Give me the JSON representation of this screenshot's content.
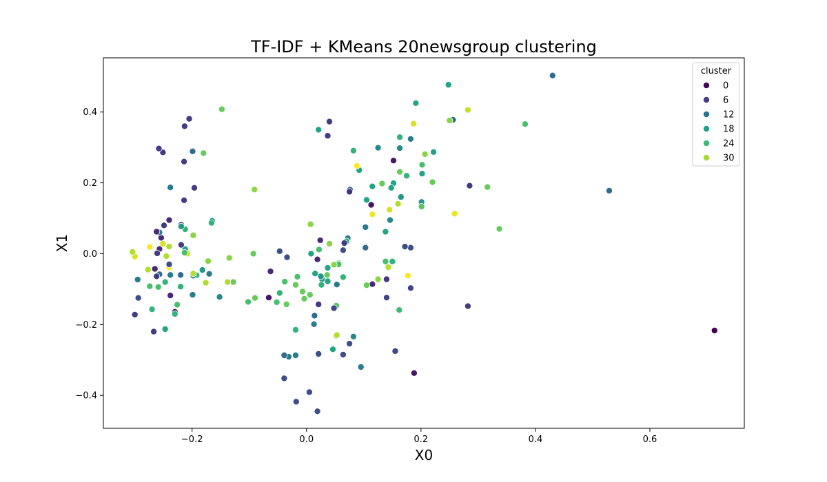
{
  "chart_data": {
    "type": "scatter",
    "title": "TF-IDF + KMeans 20newsgroup clustering",
    "xlabel": "X0",
    "ylabel": "X1",
    "xlim": [
      -0.355,
      0.765
    ],
    "ylim": [
      -0.493,
      0.553
    ],
    "xticks": [
      -0.2,
      0.0,
      0.2,
      0.4,
      0.6
    ],
    "xtick_labels": [
      "−0.2",
      "0.0",
      "0.2",
      "0.4",
      "0.6"
    ],
    "yticks": [
      -0.4,
      -0.2,
      0.0,
      0.2,
      0.4
    ],
    "ytick_labels": [
      "−0.4",
      "−0.2",
      "0.0",
      "0.2",
      "0.4"
    ],
    "grid": false,
    "legend": {
      "title": "cluster",
      "placement": "top-right",
      "entries": [
        {
          "label": "0",
          "color": "#440154"
        },
        {
          "label": "6",
          "color": "#433e85"
        },
        {
          "label": "12",
          "color": "#2c728e"
        },
        {
          "label": "18",
          "color": "#1f9e89"
        },
        {
          "label": "24",
          "color": "#3bbb75"
        },
        {
          "label": "30",
          "color": "#a5db36"
        }
      ]
    },
    "colormap": "viridis",
    "cluster_range": [
      0,
      34
    ],
    "points": [
      {
        "x": 0.713,
        "y": -0.217,
        "c": 0
      },
      {
        "x": 0.43,
        "y": 0.503,
        "c": 12
      },
      {
        "x": 0.529,
        "y": 0.178,
        "c": 12
      },
      {
        "x": 0.382,
        "y": 0.366,
        "c": 24
      },
      {
        "x": 0.337,
        "y": 0.07,
        "c": 26
      },
      {
        "x": 0.316,
        "y": 0.188,
        "c": 26
      },
      {
        "x": 0.282,
        "y": 0.406,
        "c": 31
      },
      {
        "x": 0.248,
        "y": 0.477,
        "c": 20
      },
      {
        "x": 0.285,
        "y": 0.192,
        "c": 6
      },
      {
        "x": 0.282,
        "y": -0.148,
        "c": 6
      },
      {
        "x": 0.259,
        "y": 0.113,
        "c": 33
      },
      {
        "x": 0.256,
        "y": 0.378,
        "c": 12
      },
      {
        "x": 0.25,
        "y": 0.376,
        "c": 28
      },
      {
        "x": 0.222,
        "y": 0.287,
        "c": 20
      },
      {
        "x": 0.22,
        "y": 0.202,
        "c": 26
      },
      {
        "x": 0.207,
        "y": 0.281,
        "c": 28
      },
      {
        "x": 0.202,
        "y": 0.251,
        "c": 24
      },
      {
        "x": 0.201,
        "y": 0.146,
        "c": 18
      },
      {
        "x": 0.201,
        "y": 0.133,
        "c": 25
      },
      {
        "x": 0.202,
        "y": 0.226,
        "c": 20
      },
      {
        "x": 0.191,
        "y": 0.425,
        "c": 20
      },
      {
        "x": 0.187,
        "y": 0.367,
        "c": 32
      },
      {
        "x": 0.182,
        "y": 0.324,
        "c": 14
      },
      {
        "x": 0.188,
        "y": -0.337,
        "c": 2
      },
      {
        "x": 0.182,
        "y": 0.017,
        "c": 8
      },
      {
        "x": 0.182,
        "y": -0.097,
        "c": 7
      },
      {
        "x": 0.177,
        "y": -0.062,
        "c": 34
      },
      {
        "x": 0.175,
        "y": 0.22,
        "c": 22
      },
      {
        "x": 0.172,
        "y": 0.02,
        "c": 8
      },
      {
        "x": 0.165,
        "y": 0.16,
        "c": 18
      },
      {
        "x": 0.163,
        "y": 0.329,
        "c": 22
      },
      {
        "x": 0.163,
        "y": 0.298,
        "c": 16
      },
      {
        "x": 0.163,
        "y": 0.231,
        "c": 26
      },
      {
        "x": 0.16,
        "y": 0.141,
        "c": 30
      },
      {
        "x": 0.162,
        "y": -0.159,
        "c": 23
      },
      {
        "x": 0.155,
        "y": -0.275,
        "c": 7
      },
      {
        "x": 0.152,
        "y": 0.263,
        "c": 2
      },
      {
        "x": 0.152,
        "y": 0.199,
        "c": 20
      },
      {
        "x": 0.148,
        "y": 0.186,
        "c": 20
      },
      {
        "x": 0.146,
        "y": 0.095,
        "c": 16
      },
      {
        "x": 0.15,
        "y": -0.022,
        "c": 22
      },
      {
        "x": 0.145,
        "y": 0.124,
        "c": 32
      },
      {
        "x": 0.143,
        "y": -0.038,
        "c": 30
      },
      {
        "x": 0.14,
        "y": -0.072,
        "c": 5
      },
      {
        "x": 0.14,
        "y": -0.124,
        "c": 7
      },
      {
        "x": 0.138,
        "y": 0.062,
        "c": 20
      },
      {
        "x": 0.138,
        "y": -0.022,
        "c": 24
      },
      {
        "x": 0.132,
        "y": 0.198,
        "c": 26
      },
      {
        "x": 0.125,
        "y": 0.299,
        "c": 16
      },
      {
        "x": 0.125,
        "y": -0.072,
        "c": 28
      },
      {
        "x": 0.115,
        "y": 0.19,
        "c": 20
      },
      {
        "x": 0.115,
        "y": 0.111,
        "c": 33
      },
      {
        "x": 0.115,
        "y": -0.086,
        "c": 4
      },
      {
        "x": 0.113,
        "y": 0.138,
        "c": 2
      },
      {
        "x": 0.105,
        "y": 0.152,
        "c": 20
      },
      {
        "x": 0.105,
        "y": -0.089,
        "c": 26
      },
      {
        "x": 0.103,
        "y": 0.075,
        "c": 14
      },
      {
        "x": 0.103,
        "y": 0.017,
        "c": 12
      },
      {
        "x": 0.095,
        "y": -0.32,
        "c": 14
      },
      {
        "x": 0.092,
        "y": 0.236,
        "c": 20
      },
      {
        "x": 0.088,
        "y": 0.248,
        "c": 34
      },
      {
        "x": 0.082,
        "y": 0.291,
        "c": 22
      },
      {
        "x": 0.082,
        "y": -0.234,
        "c": 16
      },
      {
        "x": 0.076,
        "y": 0.181,
        "c": 12
      },
      {
        "x": 0.075,
        "y": 0.175,
        "c": 5
      },
      {
        "x": 0.075,
        "y": -0.254,
        "c": 8
      },
      {
        "x": 0.072,
        "y": 0.044,
        "c": 14
      },
      {
        "x": 0.07,
        "y": 0.035,
        "c": 22
      },
      {
        "x": 0.066,
        "y": 0.03,
        "c": 6
      },
      {
        "x": 0.064,
        "y": 0.01,
        "c": 8
      },
      {
        "x": 0.064,
        "y": -0.066,
        "c": 22
      },
      {
        "x": 0.064,
        "y": -0.285,
        "c": 8
      },
      {
        "x": 0.056,
        "y": -0.027,
        "c": 26
      },
      {
        "x": 0.056,
        "y": -0.03,
        "c": 24
      },
      {
        "x": 0.053,
        "y": -0.087,
        "c": 14
      },
      {
        "x": 0.052,
        "y": -0.147,
        "c": 25
      },
      {
        "x": 0.052,
        "y": -0.232,
        "c": 24
      },
      {
        "x": 0.053,
        "y": -0.23,
        "c": 30
      },
      {
        "x": 0.048,
        "y": -0.031,
        "c": 28
      },
      {
        "x": 0.048,
        "y": -0.154,
        "c": 7
      },
      {
        "x": 0.046,
        "y": -0.27,
        "c": 20
      },
      {
        "x": 0.04,
        "y": 0.373,
        "c": 6
      },
      {
        "x": 0.037,
        "y": 0.333,
        "c": 6
      },
      {
        "x": 0.04,
        "y": 0.028,
        "c": 28
      },
      {
        "x": 0.037,
        "y": -0.04,
        "c": 20
      },
      {
        "x": 0.036,
        "y": -0.06,
        "c": 26
      },
      {
        "x": 0.037,
        "y": -0.078,
        "c": 20
      },
      {
        "x": 0.027,
        "y": -0.072,
        "c": 20
      },
      {
        "x": 0.025,
        "y": -0.064,
        "c": 18
      },
      {
        "x": 0.026,
        "y": -0.088,
        "c": 22
      },
      {
        "x": 0.024,
        "y": 0.038,
        "c": 4
      },
      {
        "x": 0.022,
        "y": 0.012,
        "c": 24
      },
      {
        "x": 0.021,
        "y": 0.35,
        "c": 20
      },
      {
        "x": 0.021,
        "y": -0.143,
        "c": 6
      },
      {
        "x": 0.021,
        "y": -0.283,
        "c": 8
      },
      {
        "x": 0.019,
        "y": -0.016,
        "c": 4
      },
      {
        "x": 0.019,
        "y": -0.445,
        "c": 8
      },
      {
        "x": 0.015,
        "y": -0.056,
        "c": 20
      },
      {
        "x": 0.014,
        "y": -0.175,
        "c": 12
      },
      {
        "x": 0.013,
        "y": -0.199,
        "c": 14
      },
      {
        "x": 0.007,
        "y": 0.083,
        "c": 28
      },
      {
        "x": 0.008,
        "y": 0.0,
        "c": 20
      },
      {
        "x": 0.006,
        "y": -0.116,
        "c": 26
      },
      {
        "x": 0.005,
        "y": -0.391,
        "c": 8
      },
      {
        "x": -0.004,
        "y": -0.127,
        "c": 26
      },
      {
        "x": -0.007,
        "y": -0.107,
        "c": 26
      },
      {
        "x": -0.016,
        "y": -0.065,
        "c": 24
      },
      {
        "x": -0.019,
        "y": -0.088,
        "c": 26
      },
      {
        "x": -0.019,
        "y": -0.215,
        "c": 22
      },
      {
        "x": -0.019,
        "y": -0.287,
        "c": 14
      },
      {
        "x": -0.018,
        "y": -0.418,
        "c": 8
      },
      {
        "x": -0.031,
        "y": -0.291,
        "c": 14
      },
      {
        "x": -0.034,
        "y": -0.01,
        "c": 8
      },
      {
        "x": -0.035,
        "y": -0.143,
        "c": 26
      },
      {
        "x": -0.038,
        "y": -0.079,
        "c": 24
      },
      {
        "x": -0.039,
        "y": -0.287,
        "c": 12
      },
      {
        "x": -0.039,
        "y": -0.352,
        "c": 8
      },
      {
        "x": -0.047,
        "y": 0.007,
        "c": 8
      },
      {
        "x": -0.047,
        "y": -0.111,
        "c": 22
      },
      {
        "x": -0.052,
        "y": -0.137,
        "c": 24
      },
      {
        "x": -0.063,
        "y": -0.05,
        "c": 4
      },
      {
        "x": -0.066,
        "y": -0.124,
        "c": 2
      },
      {
        "x": -0.091,
        "y": 0.181,
        "c": 28
      },
      {
        "x": -0.093,
        "y": 0.0,
        "c": 26
      },
      {
        "x": -0.09,
        "y": -0.125,
        "c": 26
      },
      {
        "x": -0.102,
        "y": -0.136,
        "c": 24
      },
      {
        "x": -0.128,
        "y": -0.08,
        "c": 26
      },
      {
        "x": -0.135,
        "y": -0.012,
        "c": 28
      },
      {
        "x": -0.138,
        "y": -0.08,
        "c": 30
      },
      {
        "x": -0.148,
        "y": 0.408,
        "c": 26
      },
      {
        "x": -0.152,
        "y": -0.122,
        "c": 16
      },
      {
        "x": -0.165,
        "y": 0.093,
        "c": 20
      },
      {
        "x": -0.166,
        "y": 0.087,
        "c": 22
      },
      {
        "x": -0.17,
        "y": -0.057,
        "c": 14
      },
      {
        "x": -0.172,
        "y": -0.021,
        "c": 28
      },
      {
        "x": -0.176,
        "y": -0.082,
        "c": 30
      },
      {
        "x": -0.18,
        "y": 0.284,
        "c": 26
      },
      {
        "x": -0.182,
        "y": -0.046,
        "c": 18
      },
      {
        "x": -0.192,
        "y": -0.061,
        "c": 22
      },
      {
        "x": -0.196,
        "y": 0.186,
        "c": 6
      },
      {
        "x": -0.198,
        "y": -0.062,
        "c": 16
      },
      {
        "x": -0.199,
        "y": 0.289,
        "c": 12
      },
      {
        "x": -0.199,
        "y": -0.116,
        "c": 14
      },
      {
        "x": -0.198,
        "y": 0.052,
        "c": 28
      },
      {
        "x": -0.198,
        "y": -0.056,
        "c": 30
      },
      {
        "x": -0.205,
        "y": 0.381,
        "c": 6
      },
      {
        "x": -0.208,
        "y": 0.0,
        "c": 32
      },
      {
        "x": -0.213,
        "y": 0.36,
        "c": 6
      },
      {
        "x": -0.214,
        "y": 0.26,
        "c": 6
      },
      {
        "x": -0.214,
        "y": 0.151,
        "c": 6
      },
      {
        "x": -0.212,
        "y": 0.069,
        "c": 22
      },
      {
        "x": -0.212,
        "y": 0.013,
        "c": 20
      },
      {
        "x": -0.213,
        "y": 0.003,
        "c": 24
      },
      {
        "x": -0.219,
        "y": 0.082,
        "c": 8
      },
      {
        "x": -0.219,
        "y": 0.077,
        "c": 18
      },
      {
        "x": -0.219,
        "y": 0.025,
        "c": 6
      },
      {
        "x": -0.22,
        "y": -0.06,
        "c": 12
      },
      {
        "x": -0.22,
        "y": -0.093,
        "c": 22
      },
      {
        "x": -0.226,
        "y": -0.144,
        "c": 24
      },
      {
        "x": -0.23,
        "y": -0.164,
        "c": 2
      },
      {
        "x": -0.23,
        "y": -0.17,
        "c": 22
      },
      {
        "x": -0.238,
        "y": 0.187,
        "c": 14
      },
      {
        "x": -0.24,
        "y": 0.095,
        "c": 4
      },
      {
        "x": -0.24,
        "y": 0.02,
        "c": 30
      },
      {
        "x": -0.238,
        "y": -0.06,
        "c": 14
      },
      {
        "x": -0.238,
        "y": -0.118,
        "c": 4
      },
      {
        "x": -0.24,
        "y": -0.039,
        "c": 34
      },
      {
        "x": -0.24,
        "y": -0.03,
        "c": 8
      },
      {
        "x": -0.245,
        "y": -0.007,
        "c": 30
      },
      {
        "x": -0.247,
        "y": -0.08,
        "c": 22
      },
      {
        "x": -0.247,
        "y": -0.213,
        "c": 20
      },
      {
        "x": -0.249,
        "y": 0.08,
        "c": 6
      },
      {
        "x": -0.251,
        "y": 0.286,
        "c": 6
      },
      {
        "x": -0.251,
        "y": 0.028,
        "c": 32
      },
      {
        "x": -0.254,
        "y": 0.045,
        "c": 4
      },
      {
        "x": -0.257,
        "y": 0.06,
        "c": 14
      },
      {
        "x": -0.258,
        "y": 0.297,
        "c": 6
      },
      {
        "x": -0.257,
        "y": 0.013,
        "c": 4
      },
      {
        "x": -0.257,
        "y": -0.058,
        "c": 12
      },
      {
        "x": -0.259,
        "y": -0.094,
        "c": 24
      },
      {
        "x": -0.262,
        "y": 0.062,
        "c": 4
      },
      {
        "x": -0.261,
        "y": 0.001,
        "c": 6
      },
      {
        "x": -0.262,
        "y": -0.064,
        "c": 6
      },
      {
        "x": -0.265,
        "y": -0.043,
        "c": 4
      },
      {
        "x": -0.267,
        "y": -0.22,
        "c": 6
      },
      {
        "x": -0.27,
        "y": -0.157,
        "c": 22
      },
      {
        "x": -0.274,
        "y": 0.019,
        "c": 34
      },
      {
        "x": -0.274,
        "y": -0.092,
        "c": 24
      },
      {
        "x": -0.277,
        "y": -0.045,
        "c": 30
      },
      {
        "x": -0.294,
        "y": -0.125,
        "c": 8
      },
      {
        "x": -0.295,
        "y": -0.073,
        "c": 14
      },
      {
        "x": -0.3,
        "y": -0.008,
        "c": 32
      },
      {
        "x": -0.3,
        "y": -0.172,
        "c": 6
      },
      {
        "x": -0.304,
        "y": 0.005,
        "c": 30
      }
    ]
  }
}
